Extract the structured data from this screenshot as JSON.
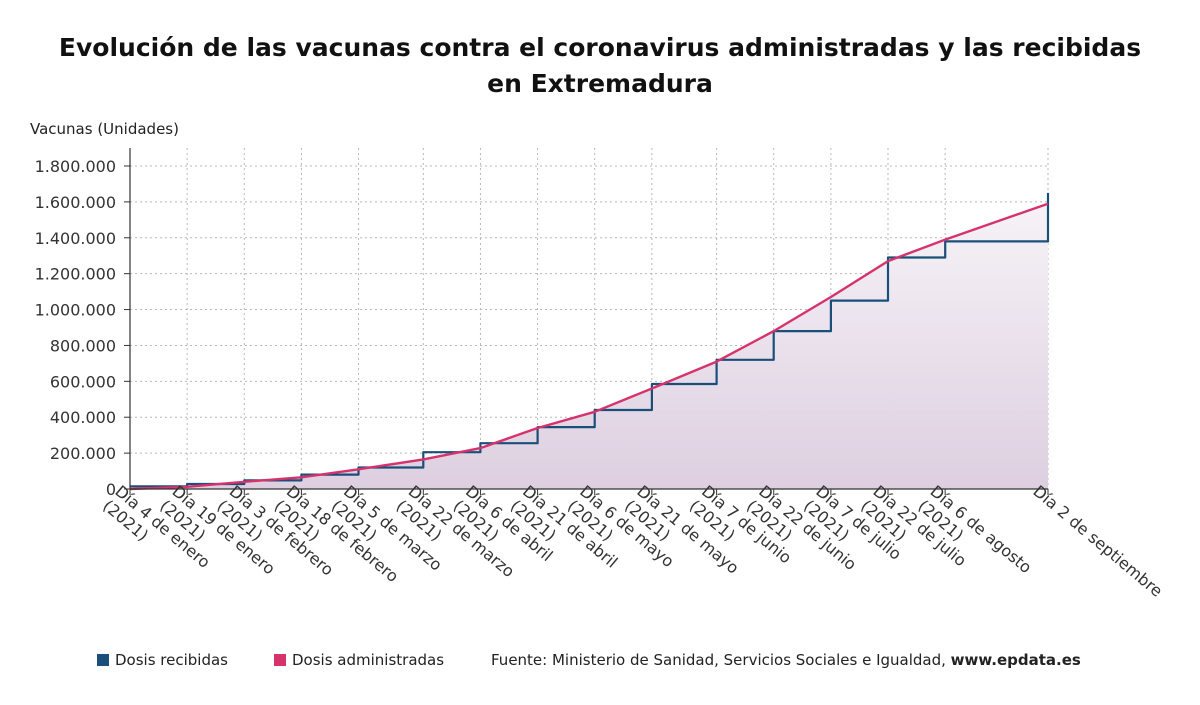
{
  "chart_data": {
    "type": "line",
    "title": "Evolución de las vacunas contra el coronavirus administradas y las recibidas en Extremadura",
    "ylabel": "Vacunas (Unidades)",
    "xlabel": "",
    "ylim": [
      0,
      1800000
    ],
    "yticks": [
      "0",
      "200.000",
      "400.000",
      "600.000",
      "800.000",
      "1.000.000",
      "1.200.000",
      "1.400.000",
      "1.600.000",
      "1.800.000"
    ],
    "x_tick_labels": [
      "Día 4 de enero (2021)",
      "Día 19 de enero (2021)",
      "Día 3 de febrero (2021)",
      "Día 18 de febrero (2021)",
      "Día 5 de marzo (2021)",
      "Día 22 de marzo (2021)",
      "Día 6 de abril (2021)",
      "Día 21 de abril (2021)",
      "Día 6 de mayo (2021)",
      "Día 21 de mayo (2021)",
      "Día 7 de junio (2021)",
      "Día 22 de junio (2021)",
      "Día 7 de julio (2021)",
      "Día 22 de julio (2021)",
      "Día 6 de agosto (2021)",
      "Día 2 de septiembre"
    ],
    "grid": true,
    "legend_position": "bottom-left",
    "x": [
      0,
      15,
      30,
      45,
      60,
      77,
      92,
      107,
      122,
      137,
      154,
      169,
      184,
      199,
      214,
      241
    ],
    "series": [
      {
        "name": "Dosis recibidas",
        "color": "#1a4f7a",
        "values": [
          15000,
          28000,
          48000,
          80000,
          120000,
          205000,
          255000,
          345000,
          440000,
          585000,
          720000,
          880000,
          1050000,
          1290000,
          1380000,
          1650000
        ]
      },
      {
        "name": "Dosis administradas",
        "color": "#d6336c",
        "values": [
          0,
          12000,
          40000,
          65000,
          110000,
          165000,
          228000,
          340000,
          430000,
          560000,
          710000,
          880000,
          1070000,
          1270000,
          1390000,
          1590000
        ]
      }
    ]
  },
  "legend": {
    "items": [
      {
        "label": "Dosis recibidas",
        "color": "#1a4f7a"
      },
      {
        "label": "Dosis administradas",
        "color": "#d6336c"
      }
    ],
    "source_prefix": "Fuente: Ministerio de Sanidad, Servicios Sociales e Igualdad, ",
    "source_site": "www.epdata.es"
  }
}
